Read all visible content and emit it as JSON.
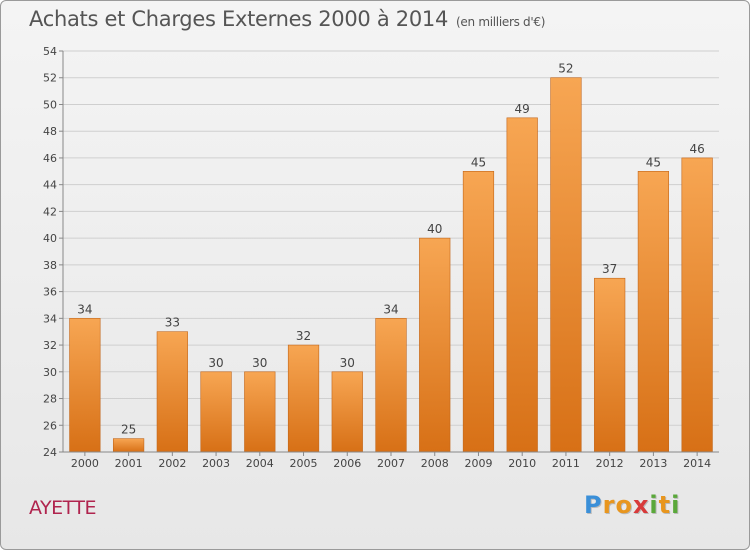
{
  "header": {
    "title": "Achats et Charges Externes 2000 à 2014",
    "subtitle": "(en milliers d'€)"
  },
  "commune": "AYETTE",
  "logo": {
    "text": "Proxiti",
    "letters": [
      {
        "ch": "P",
        "color": "#3a8fd8"
      },
      {
        "ch": "r",
        "color": "#e8961e"
      },
      {
        "ch": "o",
        "color": "#e8961e"
      },
      {
        "ch": "x",
        "color": "#d83a3a"
      },
      {
        "ch": "i",
        "color": "#5aa83a"
      },
      {
        "ch": "t",
        "color": "#e8961e"
      },
      {
        "ch": "i",
        "color": "#5aa83a"
      }
    ]
  },
  "colors": {
    "bar_light": "#f7a653",
    "bar_dark": "#d77016",
    "grid": "#cfcfcf",
    "axis": "#888888",
    "text": "#444444"
  },
  "chart_data": {
    "type": "bar",
    "title": "Achats et Charges Externes 2000 à 2014",
    "subtitle": "(en milliers d'€)",
    "categories": [
      "2000",
      "2001",
      "2002",
      "2003",
      "2004",
      "2005",
      "2006",
      "2007",
      "2008",
      "2009",
      "2010",
      "2011",
      "2012",
      "2013",
      "2014"
    ],
    "values": [
      34,
      25,
      33,
      30,
      30,
      32,
      30,
      34,
      40,
      45,
      49,
      52,
      37,
      45,
      46
    ],
    "ylim": [
      24,
      54
    ],
    "yticks": [
      24,
      26,
      28,
      30,
      32,
      34,
      36,
      38,
      40,
      42,
      44,
      46,
      48,
      50,
      52,
      54
    ],
    "grid": true
  }
}
